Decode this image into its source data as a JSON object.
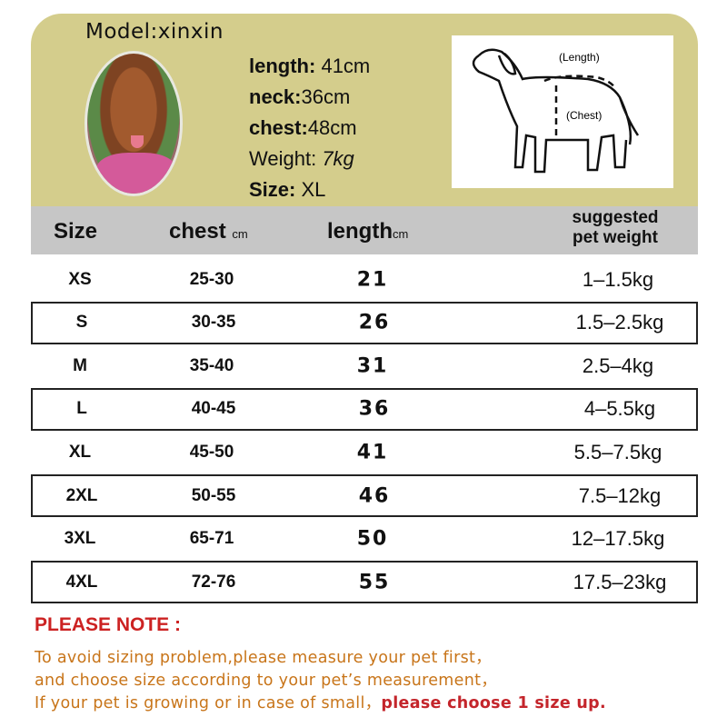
{
  "model": {
    "label": "Model:xinxin",
    "specs": [
      {
        "k": "length:",
        "v": "41cm"
      },
      {
        "k": "neck:",
        "v": "36cm"
      },
      {
        "k": "chest:",
        "v": "48cm"
      },
      {
        "k": "Weight:",
        "v": "7kg"
      },
      {
        "k": "Size:",
        "v": "XL"
      }
    ]
  },
  "diagram": {
    "length_label": "(Length)",
    "chest_label": "(Chest)"
  },
  "table": {
    "headers": {
      "size": "Size",
      "chest": "chest",
      "chest_unit": "cm",
      "length": "length",
      "length_unit": "cm",
      "weight_1": "suggested",
      "weight_2": "pet weight"
    },
    "rows": [
      {
        "size": "XS",
        "chest": "25-30",
        "length": "21",
        "weight": "1–1.5kg"
      },
      {
        "size": "S",
        "chest": "30-35",
        "length": "26",
        "weight": "1.5–2.5kg"
      },
      {
        "size": "M",
        "chest": "35-40",
        "length": "31",
        "weight": "2.5–4kg"
      },
      {
        "size": "L",
        "chest": "40-45",
        "length": "36",
        "weight": "4–5.5kg"
      },
      {
        "size": "XL",
        "chest": "45-50",
        "length": "41",
        "weight": "5.5–7.5kg"
      },
      {
        "size": "2XL",
        "chest": "50-55",
        "length": "46",
        "weight": "7.5–12kg"
      },
      {
        "size": "3XL",
        "chest": "65-71",
        "length": "50",
        "weight": "12–17.5kg"
      },
      {
        "size": "4XL",
        "chest": "72-76",
        "length": "55",
        "weight": "17.5–23kg"
      }
    ]
  },
  "note": {
    "title": "PLEASE NOTE :",
    "line1": "To avoid sizing problem,please measure your pet first，",
    "line2": "and choose size according to your pet’s measurement，",
    "line3a": "If your pet is growing or in case of small，",
    "line3b": "please choose 1 size up."
  },
  "colors": {
    "panel": "#d4cd8c",
    "header": "#c6c6c6",
    "note_title": "#cc2222",
    "note_text": "#c8751a"
  }
}
